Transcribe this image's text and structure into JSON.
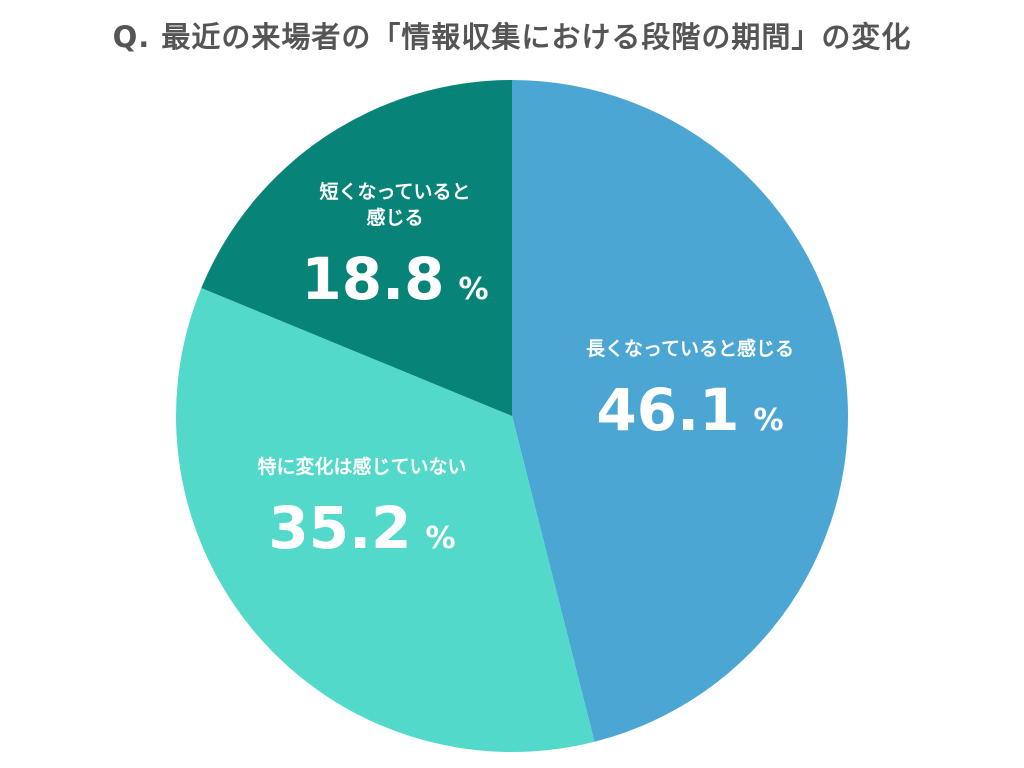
{
  "title": "Q. 最近の来場者の「情報収集における段階の期間」の変化",
  "chart_data": {
    "type": "pie",
    "title": "Q. 最近の来場者の「情報収集における段階の期間」の変化",
    "start_angle_deg": 0,
    "direction": "clockwise",
    "slices": [
      {
        "label_lines": [
          "長くなっていると感じる"
        ],
        "value": 46.1,
        "value_text": "46.1",
        "unit": "%",
        "color": "#4ba6d3"
      },
      {
        "label_lines": [
          "特に変化は感じていない"
        ],
        "value": 35.2,
        "value_text": "35.2",
        "unit": "%",
        "color": "#53d9ca"
      },
      {
        "label_lines": [
          "短くなっていると",
          "感じる"
        ],
        "value": 18.8,
        "value_text": "18.8",
        "unit": "%",
        "color": "#078378"
      }
    ]
  }
}
